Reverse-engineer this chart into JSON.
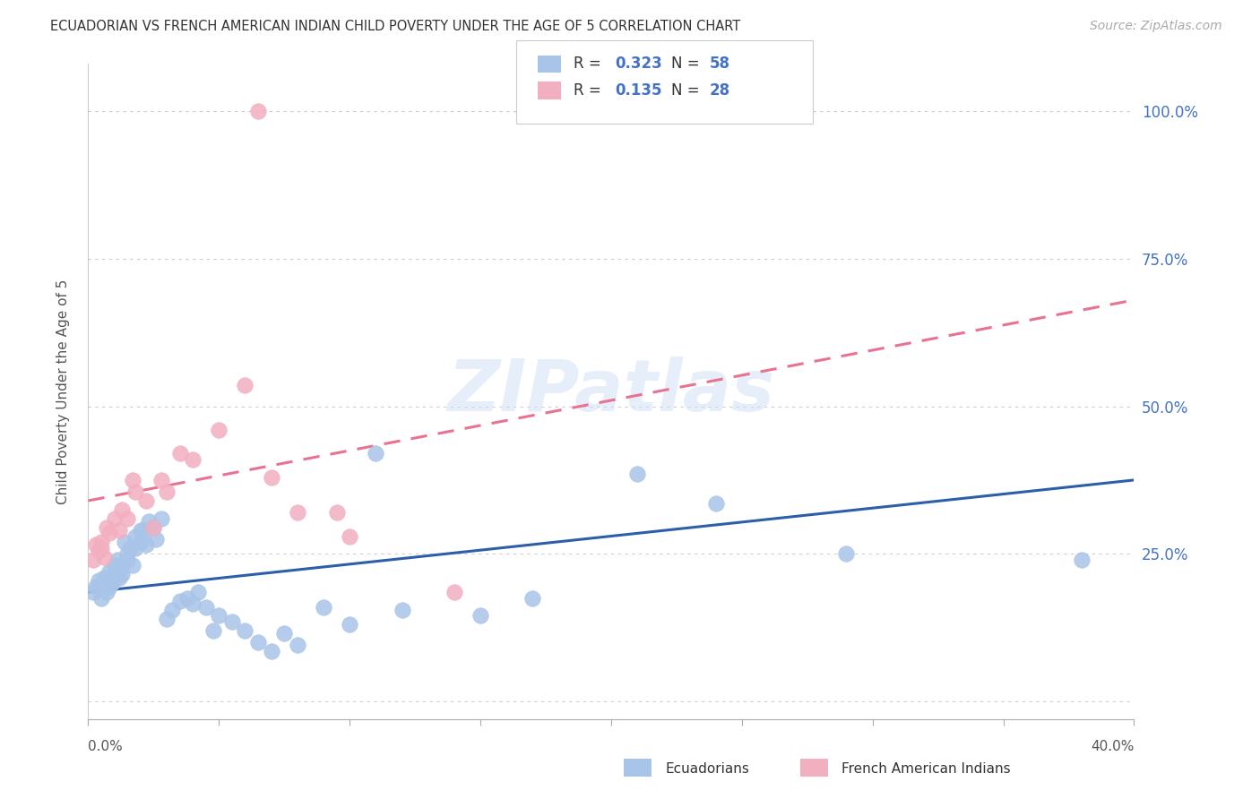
{
  "title": "ECUADORIAN VS FRENCH AMERICAN INDIAN CHILD POVERTY UNDER THE AGE OF 5 CORRELATION CHART",
  "source": "Source: ZipAtlas.com",
  "ylabel": "Child Poverty Under the Age of 5",
  "yticks": [
    0.0,
    0.25,
    0.5,
    0.75,
    1.0
  ],
  "ytick_labels": [
    "",
    "25.0%",
    "50.0%",
    "75.0%",
    "100.0%"
  ],
  "xmin": 0.0,
  "xmax": 0.4,
  "ymin": -0.03,
  "ymax": 1.08,
  "R_blue": 0.323,
  "N_blue": 58,
  "R_pink": 0.135,
  "N_pink": 28,
  "blue_color": "#a8c4e8",
  "pink_color": "#f2afc0",
  "blue_line_color": "#2b5faa",
  "pink_line_color": "#e8728f",
  "legend_label_blue": "Ecuadorians",
  "legend_label_pink": "French American Indians",
  "watermark": "ZIPatlas",
  "blue_scatter_x": [
    0.002,
    0.003,
    0.004,
    0.005,
    0.005,
    0.006,
    0.007,
    0.008,
    0.008,
    0.009,
    0.01,
    0.01,
    0.01,
    0.011,
    0.012,
    0.012,
    0.013,
    0.013,
    0.014,
    0.015,
    0.015,
    0.016,
    0.017,
    0.018,
    0.018,
    0.02,
    0.02,
    0.021,
    0.022,
    0.023,
    0.025,
    0.026,
    0.028,
    0.03,
    0.032,
    0.035,
    0.038,
    0.04,
    0.042,
    0.045,
    0.048,
    0.05,
    0.055,
    0.06,
    0.065,
    0.07,
    0.075,
    0.08,
    0.09,
    0.1,
    0.11,
    0.12,
    0.15,
    0.17,
    0.21,
    0.24,
    0.29,
    0.38
  ],
  "blue_scatter_y": [
    0.185,
    0.195,
    0.205,
    0.175,
    0.2,
    0.21,
    0.185,
    0.22,
    0.195,
    0.2,
    0.215,
    0.23,
    0.215,
    0.24,
    0.22,
    0.21,
    0.23,
    0.215,
    0.27,
    0.25,
    0.24,
    0.26,
    0.23,
    0.28,
    0.26,
    0.29,
    0.27,
    0.29,
    0.265,
    0.305,
    0.295,
    0.275,
    0.31,
    0.14,
    0.155,
    0.17,
    0.175,
    0.165,
    0.185,
    0.16,
    0.12,
    0.145,
    0.135,
    0.12,
    0.1,
    0.085,
    0.115,
    0.095,
    0.16,
    0.13,
    0.42,
    0.155,
    0.145,
    0.175,
    0.385,
    0.335,
    0.25,
    0.24
  ],
  "pink_scatter_x": [
    0.002,
    0.003,
    0.004,
    0.005,
    0.005,
    0.006,
    0.007,
    0.008,
    0.01,
    0.012,
    0.013,
    0.015,
    0.017,
    0.018,
    0.022,
    0.025,
    0.028,
    0.03,
    0.035,
    0.04,
    0.05,
    0.06,
    0.065,
    0.07,
    0.08,
    0.095,
    0.1,
    0.14
  ],
  "pink_scatter_y": [
    0.24,
    0.265,
    0.255,
    0.27,
    0.26,
    0.245,
    0.295,
    0.285,
    0.31,
    0.29,
    0.325,
    0.31,
    0.375,
    0.355,
    0.34,
    0.295,
    0.375,
    0.355,
    0.42,
    0.41,
    0.46,
    0.535,
    1.0,
    0.38,
    0.32,
    0.32,
    0.28,
    0.185
  ],
  "blue_trendline_x": [
    0.0,
    0.4
  ],
  "blue_trendline_y": [
    0.185,
    0.375
  ],
  "pink_trendline_x": [
    0.0,
    0.4
  ],
  "pink_trendline_y": [
    0.34,
    0.68
  ]
}
